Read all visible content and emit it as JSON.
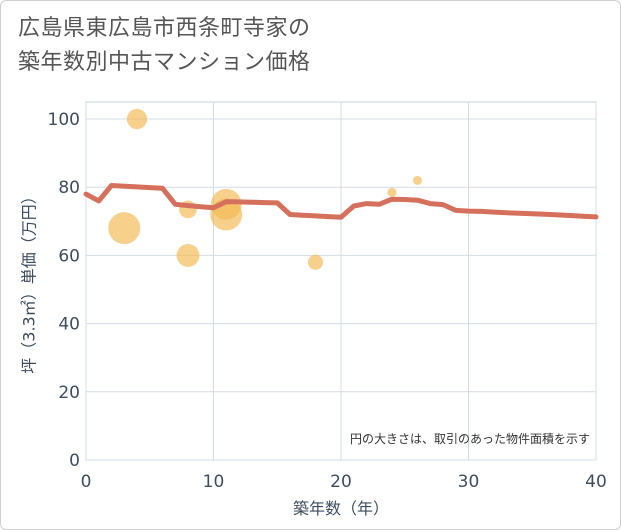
{
  "title_lines": [
    "広島県東広島市西条町寺家の",
    "築年数別中古マンション価格"
  ],
  "chart_data": {
    "type": "scatter+line",
    "xlabel": "築年数（年）",
    "ylabel": "坪（3.3㎡）単価（万円）",
    "xlim": [
      0,
      40
    ],
    "ylim": [
      0,
      105
    ],
    "xticks": [
      0,
      10,
      20,
      30,
      40
    ],
    "yticks": [
      0,
      20,
      40,
      60,
      80,
      100
    ],
    "grid": true,
    "note": "円の大きさは、取引のあった物件面積を示す",
    "colors": {
      "line": "#d4705c",
      "bubble": "#f2b94f"
    },
    "trend_line": {
      "x": [
        0,
        1,
        2,
        3,
        4,
        5,
        6,
        7,
        8,
        9,
        10,
        11,
        12,
        13,
        14,
        15,
        16,
        17,
        18,
        19,
        20,
        21,
        22,
        23,
        24,
        25,
        26,
        27,
        28,
        29,
        30,
        31,
        32,
        33,
        34,
        35,
        36,
        37,
        38,
        39,
        40
      ],
      "y": [
        78,
        76,
        80.5,
        80.3,
        80.1,
        79.9,
        79.7,
        75,
        74.6,
        74.3,
        74,
        75.8,
        75.7,
        75.6,
        75.5,
        75.4,
        72,
        71.8,
        71.6,
        71.4,
        71.2,
        74.5,
        75.2,
        75,
        76.5,
        76.4,
        76.2,
        75.2,
        74.9,
        73.2,
        73,
        72.9,
        72.7,
        72.5,
        72.4,
        72.2,
        72.1,
        71.9,
        71.7,
        71.5,
        71.3
      ]
    },
    "bubbles": [
      {
        "x": 3,
        "y": 68,
        "size": 1.0
      },
      {
        "x": 4,
        "y": 100,
        "size": 0.55
      },
      {
        "x": 8,
        "y": 73.5,
        "size": 0.45
      },
      {
        "x": 8,
        "y": 60,
        "size": 0.65
      },
      {
        "x": 11,
        "y": 75,
        "size": 0.95
      },
      {
        "x": 11,
        "y": 72,
        "size": 1.0
      },
      {
        "x": 18,
        "y": 58,
        "size": 0.35
      },
      {
        "x": 24,
        "y": 78.5,
        "size": 0.12
      },
      {
        "x": 26,
        "y": 82,
        "size": 0.12
      }
    ]
  }
}
